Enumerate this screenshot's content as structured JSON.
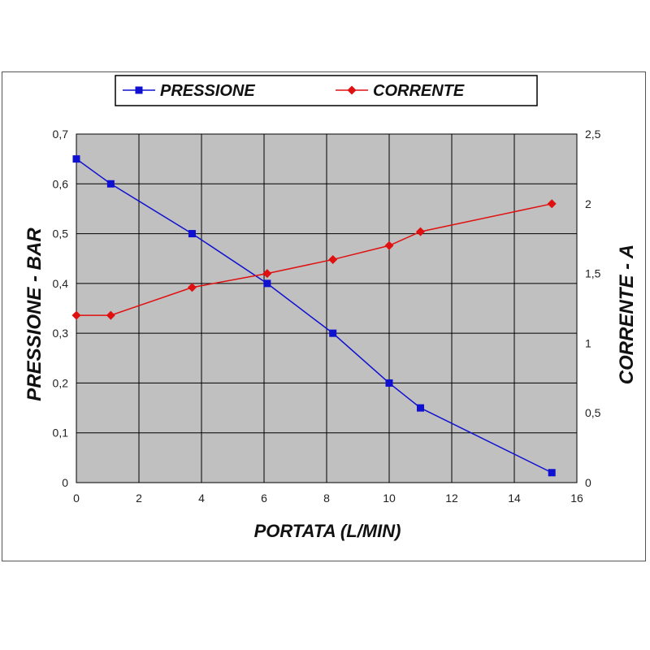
{
  "chart_data": {
    "type": "line",
    "title": "",
    "xlabel": "PORTATA (L/MIN)",
    "ylabel": "PRESSIONE - BAR",
    "y2label": "CORRENTE - A",
    "xlim": [
      0,
      16
    ],
    "ylim": [
      0,
      0.7
    ],
    "y2lim": [
      0,
      2.5
    ],
    "x_ticks": [
      0,
      2,
      4,
      6,
      8,
      10,
      12,
      14,
      16
    ],
    "y_ticks": [
      0,
      0.1,
      0.2,
      0.3,
      0.4,
      0.5,
      0.6,
      0.7
    ],
    "y2_ticks": [
      0,
      0.5,
      1,
      1.5,
      2,
      2.5
    ],
    "x_tick_labels": [
      "0",
      "2",
      "4",
      "6",
      "8",
      "10",
      "12",
      "14",
      "16"
    ],
    "y_tick_labels": [
      "0",
      "0,1",
      "0,2",
      "0,3",
      "0,4",
      "0,5",
      "0,6",
      "0,7"
    ],
    "y2_tick_labels": [
      "0",
      "0,5",
      "1",
      "1,5",
      "2",
      "2,5"
    ],
    "grid": true,
    "legend_position": "top",
    "plot_background": "#c0c0c0",
    "series": [
      {
        "name": "PRESSIONE",
        "axis": "left",
        "marker": "square",
        "color": "#1010d0",
        "x": [
          0,
          1.1,
          3.7,
          6.1,
          8.2,
          10.0,
          11.0,
          15.2
        ],
        "y": [
          0.65,
          0.6,
          0.5,
          0.4,
          0.3,
          0.2,
          0.15,
          0.02
        ]
      },
      {
        "name": "CORRENTE",
        "axis": "right",
        "marker": "diamond",
        "color": "#e01010",
        "x": [
          0,
          1.1,
          3.7,
          6.1,
          8.2,
          10.0,
          11.0,
          15.2
        ],
        "y": [
          1.2,
          1.2,
          1.4,
          1.5,
          1.6,
          1.7,
          1.8,
          2.0
        ]
      }
    ]
  }
}
